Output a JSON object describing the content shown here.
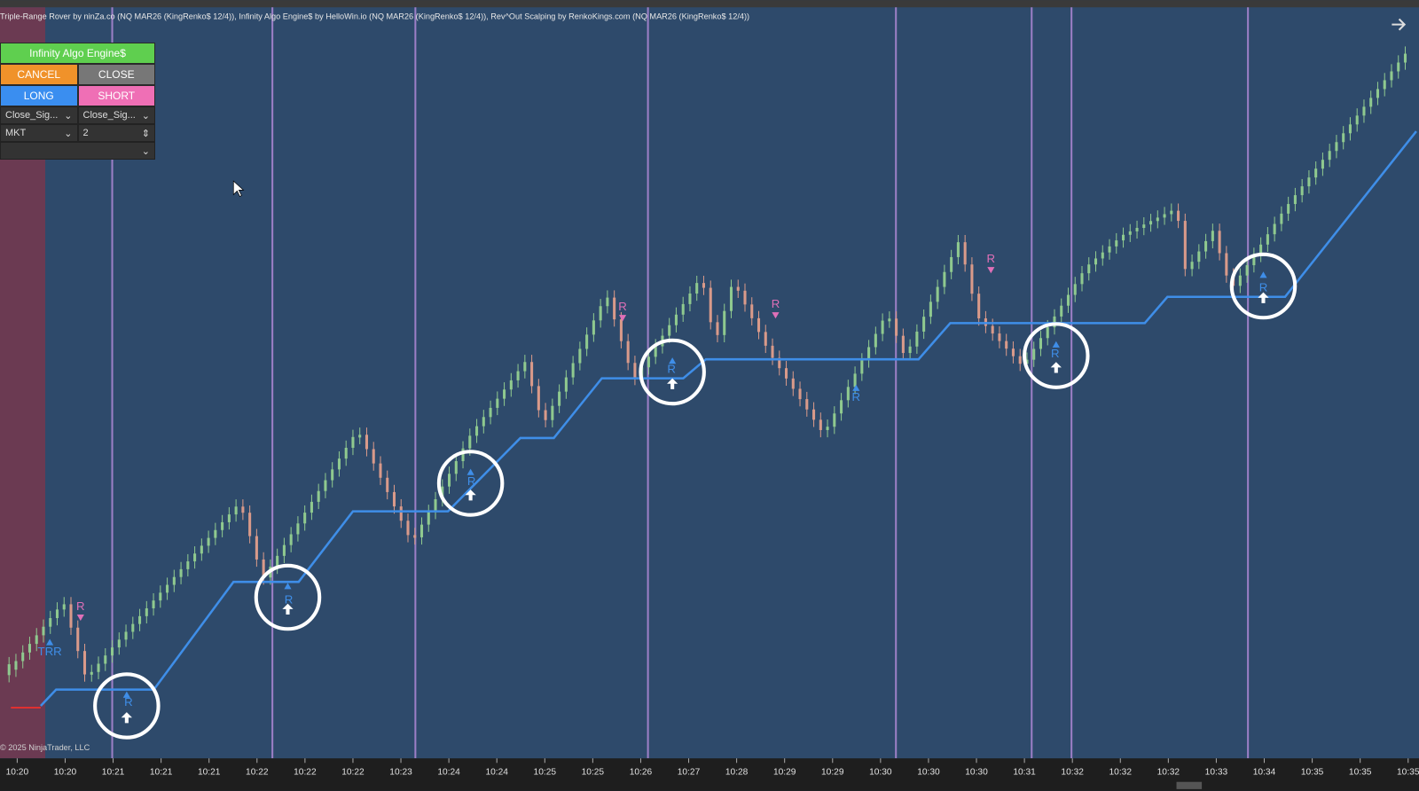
{
  "header": {
    "indicators": "Triple-Range Rover by ninZa.co (NQ MAR26 (KingRenko$ 12/4)), Infinity Algo Engine$ by HelloWin.io (NQ MAR26 (KingRenko$ 12/4)), Rev^Out Scalping by RenkoKings.com (NQ MAR26 (KingRenko$ 12/4))"
  },
  "panel": {
    "title": "Infinity Algo Engine$",
    "cancel": "CANCEL",
    "close": "CLOSE",
    "long": "LONG",
    "short": "SHORT",
    "exit_long": "Close_Sig...",
    "exit_short": "Close_Sig...",
    "order_type": "MKT",
    "quantity": "2"
  },
  "signals": [
    "TRR",
    "R",
    "R",
    "R",
    "R",
    "R",
    "R",
    "R",
    "R",
    "R",
    "R",
    "R"
  ],
  "time_axis": [
    "10:20",
    "10:20",
    "10:21",
    "10:21",
    "10:21",
    "10:22",
    "10:22",
    "10:22",
    "10:23",
    "10:24",
    "10:24",
    "10:25",
    "10:25",
    "10:26",
    "10:27",
    "10:28",
    "10:29",
    "10:29",
    "10:30",
    "10:30",
    "10:30",
    "10:31",
    "10:32",
    "10:32",
    "10:32",
    "10:33",
    "10:34",
    "10:35",
    "10:35",
    "10:35"
  ],
  "copyright": "© 2025 NinjaTrader, LLC"
}
